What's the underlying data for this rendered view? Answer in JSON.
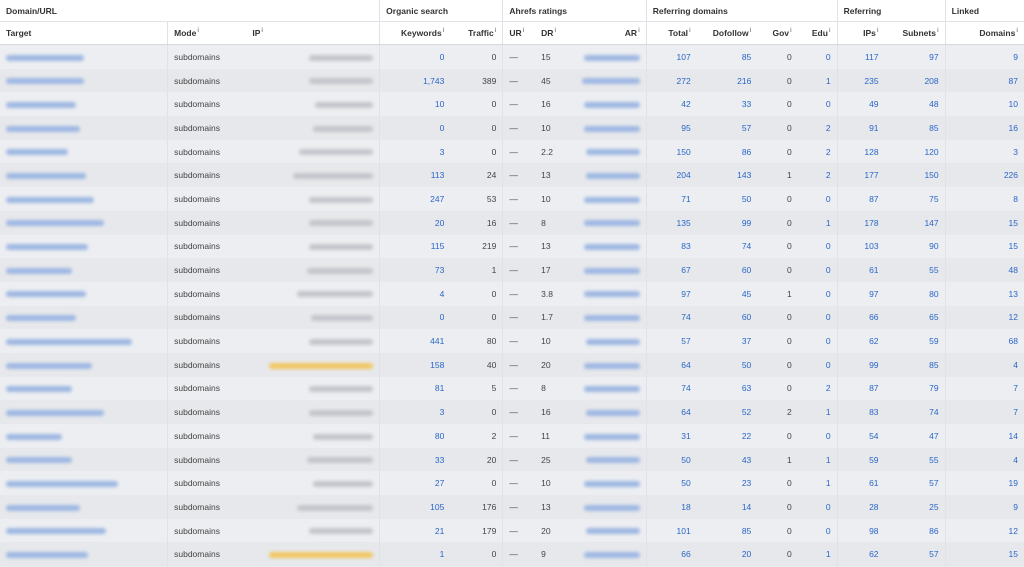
{
  "group_headers": {
    "domain_url": "Domain/URL",
    "organic_search": "Organic search",
    "ahrefs_ratings": "Ahrefs ratings",
    "referring_domains": "Referring domains",
    "referring": "Referring",
    "linked": "Linked"
  },
  "columns": {
    "target": "Target",
    "mode": "Mode",
    "ip": "IP",
    "keywords": "Keywords",
    "traffic": "Traffic",
    "ur": "UR",
    "dr": "DR",
    "ar": "AR",
    "total": "Total",
    "dofollow": "Dofollow",
    "gov": "Gov",
    "edu": "Edu",
    "ips": "IPs",
    "subnets": "Subnets",
    "domains": "Domains"
  },
  "info_glyph": "i",
  "colors": {
    "link": "#2a66c9",
    "blur_target": "#9fb8e3",
    "blur_ip": "#c3c6cb",
    "blur_ip_highlight": "#f2c764"
  },
  "rows": [
    {
      "mode": "subdomains",
      "ip_highlight": false,
      "keywords": "0",
      "traffic": "0",
      "ur": "—",
      "dr": "15",
      "total": "107",
      "dofollow": "85",
      "gov": "0",
      "edu": "0",
      "ips": "117",
      "subnets": "97",
      "domains": "9"
    },
    {
      "mode": "subdomains",
      "ip_highlight": false,
      "keywords": "1,743",
      "traffic": "389",
      "ur": "—",
      "dr": "45",
      "total": "272",
      "dofollow": "216",
      "gov": "0",
      "edu": "1",
      "ips": "235",
      "subnets": "208",
      "domains": "87"
    },
    {
      "mode": "subdomains",
      "ip_highlight": false,
      "keywords": "10",
      "traffic": "0",
      "ur": "—",
      "dr": "16",
      "total": "42",
      "dofollow": "33",
      "gov": "0",
      "edu": "0",
      "ips": "49",
      "subnets": "48",
      "domains": "10"
    },
    {
      "mode": "subdomains",
      "ip_highlight": false,
      "keywords": "0",
      "traffic": "0",
      "ur": "—",
      "dr": "10",
      "total": "95",
      "dofollow": "57",
      "gov": "0",
      "edu": "2",
      "ips": "91",
      "subnets": "85",
      "domains": "16"
    },
    {
      "mode": "subdomains",
      "ip_highlight": false,
      "keywords": "3",
      "traffic": "0",
      "ur": "—",
      "dr": "2.2",
      "total": "150",
      "dofollow": "86",
      "gov": "0",
      "edu": "2",
      "ips": "128",
      "subnets": "120",
      "domains": "3"
    },
    {
      "mode": "subdomains",
      "ip_highlight": false,
      "keywords": "113",
      "traffic": "24",
      "ur": "—",
      "dr": "13",
      "total": "204",
      "dofollow": "143",
      "gov": "1",
      "edu": "2",
      "ips": "177",
      "subnets": "150",
      "domains": "226"
    },
    {
      "mode": "subdomains",
      "ip_highlight": false,
      "keywords": "247",
      "traffic": "53",
      "ur": "—",
      "dr": "10",
      "total": "71",
      "dofollow": "50",
      "gov": "0",
      "edu": "0",
      "ips": "87",
      "subnets": "75",
      "domains": "8"
    },
    {
      "mode": "subdomains",
      "ip_highlight": false,
      "keywords": "20",
      "traffic": "16",
      "ur": "—",
      "dr": "8",
      "total": "135",
      "dofollow": "99",
      "gov": "0",
      "edu": "1",
      "ips": "178",
      "subnets": "147",
      "domains": "15"
    },
    {
      "mode": "subdomains",
      "ip_highlight": false,
      "keywords": "115",
      "traffic": "219",
      "ur": "—",
      "dr": "13",
      "total": "83",
      "dofollow": "74",
      "gov": "0",
      "edu": "0",
      "ips": "103",
      "subnets": "90",
      "domains": "15"
    },
    {
      "mode": "subdomains",
      "ip_highlight": false,
      "keywords": "73",
      "traffic": "1",
      "ur": "—",
      "dr": "17",
      "total": "67",
      "dofollow": "60",
      "gov": "0",
      "edu": "0",
      "ips": "61",
      "subnets": "55",
      "domains": "48"
    },
    {
      "mode": "subdomains",
      "ip_highlight": false,
      "keywords": "4",
      "traffic": "0",
      "ur": "—",
      "dr": "3.8",
      "total": "97",
      "dofollow": "45",
      "gov": "1",
      "edu": "0",
      "ips": "97",
      "subnets": "80",
      "domains": "13"
    },
    {
      "mode": "subdomains",
      "ip_highlight": false,
      "keywords": "0",
      "traffic": "0",
      "ur": "—",
      "dr": "1.7",
      "total": "74",
      "dofollow": "60",
      "gov": "0",
      "edu": "0",
      "ips": "66",
      "subnets": "65",
      "domains": "12"
    },
    {
      "mode": "subdomains",
      "ip_highlight": false,
      "keywords": "441",
      "traffic": "80",
      "ur": "—",
      "dr": "10",
      "total": "57",
      "dofollow": "37",
      "gov": "0",
      "edu": "0",
      "ips": "62",
      "subnets": "59",
      "domains": "68"
    },
    {
      "mode": "subdomains",
      "ip_highlight": true,
      "keywords": "158",
      "traffic": "40",
      "ur": "—",
      "dr": "20",
      "total": "64",
      "dofollow": "50",
      "gov": "0",
      "edu": "0",
      "ips": "99",
      "subnets": "85",
      "domains": "4"
    },
    {
      "mode": "subdomains",
      "ip_highlight": false,
      "keywords": "81",
      "traffic": "5",
      "ur": "—",
      "dr": "8",
      "total": "74",
      "dofollow": "63",
      "gov": "0",
      "edu": "2",
      "ips": "87",
      "subnets": "79",
      "domains": "7"
    },
    {
      "mode": "subdomains",
      "ip_highlight": false,
      "keywords": "3",
      "traffic": "0",
      "ur": "—",
      "dr": "16",
      "total": "64",
      "dofollow": "52",
      "gov": "2",
      "edu": "1",
      "ips": "83",
      "subnets": "74",
      "domains": "7"
    },
    {
      "mode": "subdomains",
      "ip_highlight": false,
      "keywords": "80",
      "traffic": "2",
      "ur": "—",
      "dr": "11",
      "total": "31",
      "dofollow": "22",
      "gov": "0",
      "edu": "0",
      "ips": "54",
      "subnets": "47",
      "domains": "14"
    },
    {
      "mode": "subdomains",
      "ip_highlight": false,
      "keywords": "33",
      "traffic": "20",
      "ur": "—",
      "dr": "25",
      "total": "50",
      "dofollow": "43",
      "gov": "1",
      "edu": "1",
      "ips": "59",
      "subnets": "55",
      "domains": "4"
    },
    {
      "mode": "subdomains",
      "ip_highlight": false,
      "keywords": "27",
      "traffic": "0",
      "ur": "—",
      "dr": "10",
      "total": "50",
      "dofollow": "23",
      "gov": "0",
      "edu": "1",
      "ips": "61",
      "subnets": "57",
      "domains": "19"
    },
    {
      "mode": "subdomains",
      "ip_highlight": false,
      "keywords": "105",
      "traffic": "176",
      "ur": "—",
      "dr": "13",
      "total": "18",
      "dofollow": "14",
      "gov": "0",
      "edu": "0",
      "ips": "28",
      "subnets": "25",
      "domains": "9"
    },
    {
      "mode": "subdomains",
      "ip_highlight": false,
      "keywords": "21",
      "traffic": "179",
      "ur": "—",
      "dr": "20",
      "total": "101",
      "dofollow": "85",
      "gov": "0",
      "edu": "0",
      "ips": "98",
      "subnets": "86",
      "domains": "12"
    },
    {
      "mode": "subdomains",
      "ip_highlight": true,
      "keywords": "1",
      "traffic": "0",
      "ur": "—",
      "dr": "9",
      "total": "66",
      "dofollow": "20",
      "gov": "0",
      "edu": "1",
      "ips": "62",
      "subnets": "57",
      "domains": "15"
    }
  ]
}
